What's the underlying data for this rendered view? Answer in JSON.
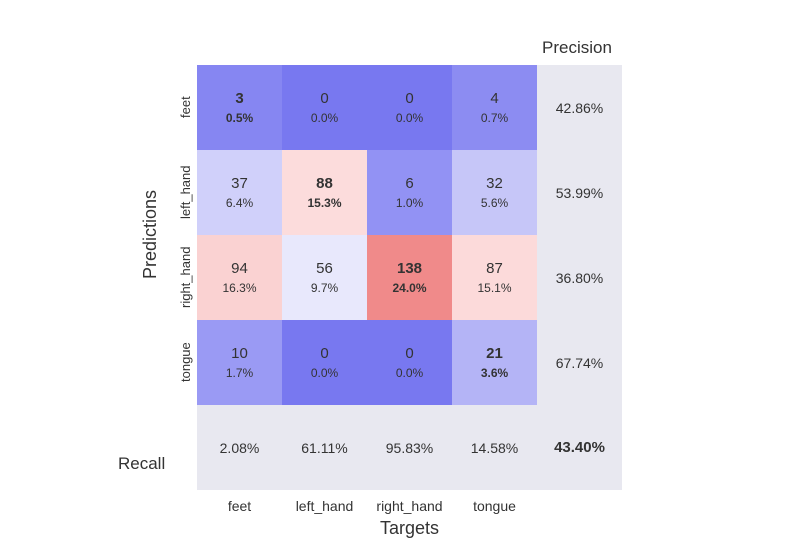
{
  "confusion_matrix": {
    "type": "heatmap",
    "classes": [
      "feet",
      "left_hand",
      "right_hand",
      "tongue"
    ],
    "x_axis_title": "Targets",
    "y_axis_title": "Predictions",
    "precision_title": "Precision",
    "recall_title": "Recall",
    "cells": [
      [
        {
          "count": 3,
          "pct": "0.5%",
          "bold": true,
          "bg": "#8686f2"
        },
        {
          "count": 0,
          "pct": "0.0%",
          "bold": false,
          "bg": "#7878f0"
        },
        {
          "count": 0,
          "pct": "0.0%",
          "bold": false,
          "bg": "#7878f0"
        },
        {
          "count": 4,
          "pct": "0.7%",
          "bold": false,
          "bg": "#8c8cf2"
        }
      ],
      [
        {
          "count": 37,
          "pct": "6.4%",
          "bold": false,
          "bg": "#d0d0fa"
        },
        {
          "count": 88,
          "pct": "15.3%",
          "bold": true,
          "bg": "#fcdcdc"
        },
        {
          "count": 6,
          "pct": "1.0%",
          "bold": false,
          "bg": "#9292f4"
        },
        {
          "count": 32,
          "pct": "5.6%",
          "bold": false,
          "bg": "#c6c6f8"
        }
      ],
      [
        {
          "count": 94,
          "pct": "16.3%",
          "bold": false,
          "bg": "#fad2d2"
        },
        {
          "count": 56,
          "pct": "9.7%",
          "bold": false,
          "bg": "#e8e8fc"
        },
        {
          "count": 138,
          "pct": "24.0%",
          "bold": true,
          "bg": "#f08a8a"
        },
        {
          "count": 87,
          "pct": "15.1%",
          "bold": false,
          "bg": "#fcdada"
        }
      ],
      [
        {
          "count": 10,
          "pct": "1.7%",
          "bold": false,
          "bg": "#9a9af4"
        },
        {
          "count": 0,
          "pct": "0.0%",
          "bold": false,
          "bg": "#7878f0"
        },
        {
          "count": 0,
          "pct": "0.0%",
          "bold": false,
          "bg": "#7878f0"
        },
        {
          "count": 21,
          "pct": "3.6%",
          "bold": true,
          "bg": "#b4b4f6"
        }
      ]
    ],
    "precision": [
      "42.86%",
      "53.99%",
      "36.80%",
      "67.74%"
    ],
    "recall": [
      "2.08%",
      "61.11%",
      "95.83%",
      "14.58%"
    ],
    "accuracy": "43.40%",
    "summary_bg": "#e8e8f0",
    "cell_size": 85,
    "font_sizes": {
      "count": 15,
      "pct": 12,
      "label": 13,
      "axis_title": 18,
      "header": 17
    }
  }
}
